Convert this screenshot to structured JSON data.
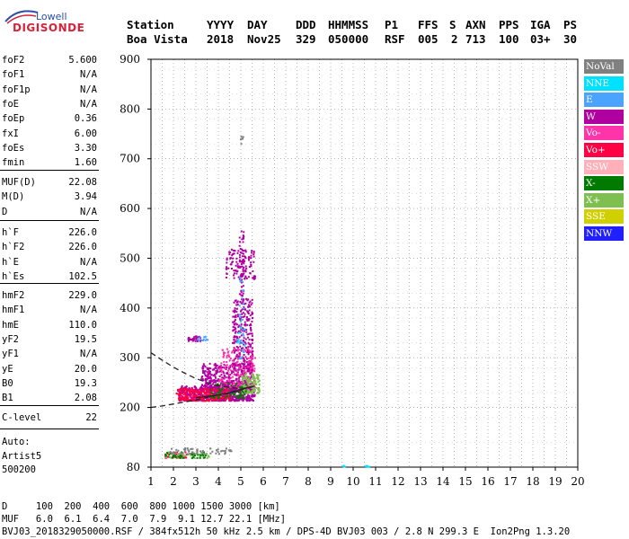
{
  "logo": {
    "line1": "Lowell",
    "line2": "DIGISONDE"
  },
  "header": {
    "labels": [
      "Station",
      "YYYY",
      "DAY",
      "DDD",
      "HHMMSS",
      "P1",
      "FFS",
      "S",
      "AXN",
      "PPS",
      "IGA",
      "PS"
    ],
    "values": [
      "Boa Vista",
      "2018",
      "Nov25",
      "329",
      "050000",
      "RSF",
      "005",
      "2",
      "713",
      "100",
      "03+",
      "30"
    ]
  },
  "params": {
    "group1": [
      {
        "k": "foF2",
        "v": "5.600"
      },
      {
        "k": "foF1",
        "v": "N/A"
      },
      {
        "k": "foF1p",
        "v": "N/A"
      },
      {
        "k": "foE",
        "v": "N/A"
      },
      {
        "k": "foEp",
        "v": "0.36"
      },
      {
        "k": "fxI",
        "v": "6.00"
      },
      {
        "k": "foEs",
        "v": "3.30"
      },
      {
        "k": "fmin",
        "v": "1.60"
      }
    ],
    "group2": [
      {
        "k": "MUF(D)",
        "v": "22.08"
      },
      {
        "k": "M(D)",
        "v": "3.94"
      },
      {
        "k": "D",
        "v": "N/A"
      }
    ],
    "group3": [
      {
        "k": "h`F",
        "v": "226.0"
      },
      {
        "k": "h`F2",
        "v": "226.0"
      },
      {
        "k": "h`E",
        "v": "N/A"
      },
      {
        "k": "h`Es",
        "v": "102.5"
      }
    ],
    "group4": [
      {
        "k": "hmF2",
        "v": "229.0"
      },
      {
        "k": "hmF1",
        "v": "N/A"
      },
      {
        "k": "hmE",
        "v": "110.0"
      },
      {
        "k": "yF2",
        "v": "19.5"
      },
      {
        "k": "yF1",
        "v": "N/A"
      },
      {
        "k": "yE",
        "v": "20.0"
      },
      {
        "k": "B0",
        "v": "19.3"
      },
      {
        "k": "B1",
        "v": "2.08"
      }
    ],
    "group5": [
      {
        "k": "C-level",
        "v": "22"
      }
    ]
  },
  "autoscaling": {
    "line1": "Auto:",
    "line2": "Artist5",
    "line3": "500200"
  },
  "legend": [
    {
      "label": "NoVal",
      "color": "#808080"
    },
    {
      "label": "NNE",
      "color": "#00e0ff"
    },
    {
      "label": "E",
      "color": "#4aa3ff"
    },
    {
      "label": "W",
      "color": "#b0009f"
    },
    {
      "label": "Vo-",
      "color": "#ff33aa"
    },
    {
      "label": "Vo+",
      "color": "#ff0044"
    },
    {
      "label": "SSW",
      "color": "#ffb0b8"
    },
    {
      "label": "X-",
      "color": "#007a00"
    },
    {
      "label": "X+",
      "color": "#7fbf50"
    },
    {
      "label": "SSE",
      "color": "#d0d000"
    },
    {
      "label": "NNW",
      "color": "#2020ff"
    }
  ],
  "footer": {
    "d_row": "D     100  200  400  600  800 1000 1500 3000 [km]",
    "muf_row": "MUF   6.0  6.1  6.4  7.0  7.9  9.1 12.7 22.1 [MHz]",
    "info_row": "BVJ03_2018329050000.RSF / 384fx512h 50 kHz 2.5 km / DPS-4D BVJ03 003 / 2.8 N 299.3 E  Ion2Png 1.3.20"
  },
  "chart_data": {
    "type": "scatter",
    "xlim": [
      1,
      20
    ],
    "ylim": [
      80,
      900
    ],
    "x_ticks": [
      1,
      2,
      3,
      4,
      5,
      6,
      7,
      8,
      9,
      10,
      11,
      12,
      13,
      14,
      15,
      16,
      17,
      18,
      19,
      20
    ],
    "y_ticks": [
      80,
      200,
      300,
      400,
      500,
      600,
      700,
      800,
      900
    ],
    "grid": true,
    "legend_position": "right",
    "series": [
      {
        "name": "W",
        "color": "#b0009f",
        "regions": [
          {
            "x": [
              2.2,
              5.6
            ],
            "y": [
              215,
              245
            ],
            "n": 500
          },
          {
            "x": [
              3.2,
              5.5
            ],
            "y": [
              235,
              290
            ],
            "n": 450
          },
          {
            "x": [
              4.6,
              5.5
            ],
            "y": [
              280,
              420
            ],
            "n": 300
          },
          {
            "x": [
              4.9,
              5.1
            ],
            "y": [
              420,
              560
            ],
            "n": 50
          },
          {
            "x": [
              4.3,
              5.6
            ],
            "y": [
              460,
              520
            ],
            "n": 120
          },
          {
            "x": [
              2.6,
              3.2
            ],
            "y": [
              335,
              345
            ],
            "n": 30
          }
        ]
      },
      {
        "name": "Vo+",
        "color": "#ff0044",
        "regions": [
          {
            "x": [
              2.1,
              4.5
            ],
            "y": [
              215,
              240
            ],
            "n": 220
          },
          {
            "x": [
              1.5,
              2.6
            ],
            "y": [
              100,
              112
            ],
            "n": 30
          }
        ]
      },
      {
        "name": "Vo-",
        "color": "#ff33aa",
        "regions": [
          {
            "x": [
              4.0,
              5.6
            ],
            "y": [
              240,
              320
            ],
            "n": 160
          }
        ]
      },
      {
        "name": "X+",
        "color": "#7fbf50",
        "regions": [
          {
            "x": [
              5.0,
              5.8
            ],
            "y": [
              230,
              270
            ],
            "n": 120
          },
          {
            "x": [
              1.6,
              3.6
            ],
            "y": [
              100,
              112
            ],
            "n": 50
          }
        ]
      },
      {
        "name": "X-",
        "color": "#007a00",
        "regions": [
          {
            "x": [
              3.6,
              5.2
            ],
            "y": [
              220,
              250
            ],
            "n": 70
          },
          {
            "x": [
              1.6,
              3.4
            ],
            "y": [
              100,
              112
            ],
            "n": 40
          }
        ]
      },
      {
        "name": "NNE",
        "color": "#00e0ff",
        "regions": [
          {
            "x": [
              9.5,
              9.6
            ],
            "y": [
              82,
              86
            ],
            "n": 6
          },
          {
            "x": [
              10.5,
              10.7
            ],
            "y": [
              82,
              86
            ],
            "n": 8
          },
          {
            "x": [
              4.8,
              5.2
            ],
            "y": [
              300,
              380
            ],
            "n": 15
          }
        ]
      },
      {
        "name": "E",
        "color": "#4aa3ff",
        "regions": [
          {
            "x": [
              4.9,
              5.1
            ],
            "y": [
              330,
              480
            ],
            "n": 25
          },
          {
            "x": [
              3.0,
              3.7
            ],
            "y": [
              335,
              345
            ],
            "n": 12
          }
        ]
      },
      {
        "name": "NoVal",
        "color": "#808080",
        "regions": [
          {
            "x": [
              1.8,
              4.6
            ],
            "y": [
              108,
              120
            ],
            "n": 60
          },
          {
            "x": [
              4.9,
              5.1
            ],
            "y": [
              730,
              750
            ],
            "n": 6
          }
        ]
      }
    ],
    "curves": [
      {
        "name": "profile",
        "style": "dashed",
        "x": [
          1.0,
          1.5,
          2.0,
          2.5,
          3.0,
          3.5,
          4.0,
          4.5,
          5.0,
          5.4,
          5.6
        ],
        "y": [
          200,
          203,
          207,
          211,
          215,
          220,
          225,
          230,
          236,
          240,
          243
        ]
      },
      {
        "name": "profile",
        "style": "dashed",
        "x": [
          1.0,
          1.5,
          2.0,
          2.5,
          3.0,
          3.5,
          4.0,
          4.5,
          5.0,
          5.4,
          5.6
        ],
        "y": [
          310,
          295,
          281,
          269,
          258,
          250,
          244,
          240,
          238,
          240,
          243
        ]
      },
      {
        "name": "virtual",
        "style": "solid",
        "x": [
          3.0,
          3.5,
          4.0,
          4.5,
          5.0,
          5.3,
          5.6
        ],
        "y": [
          220,
          222,
          225,
          229,
          235,
          240,
          243
        ]
      }
    ]
  }
}
